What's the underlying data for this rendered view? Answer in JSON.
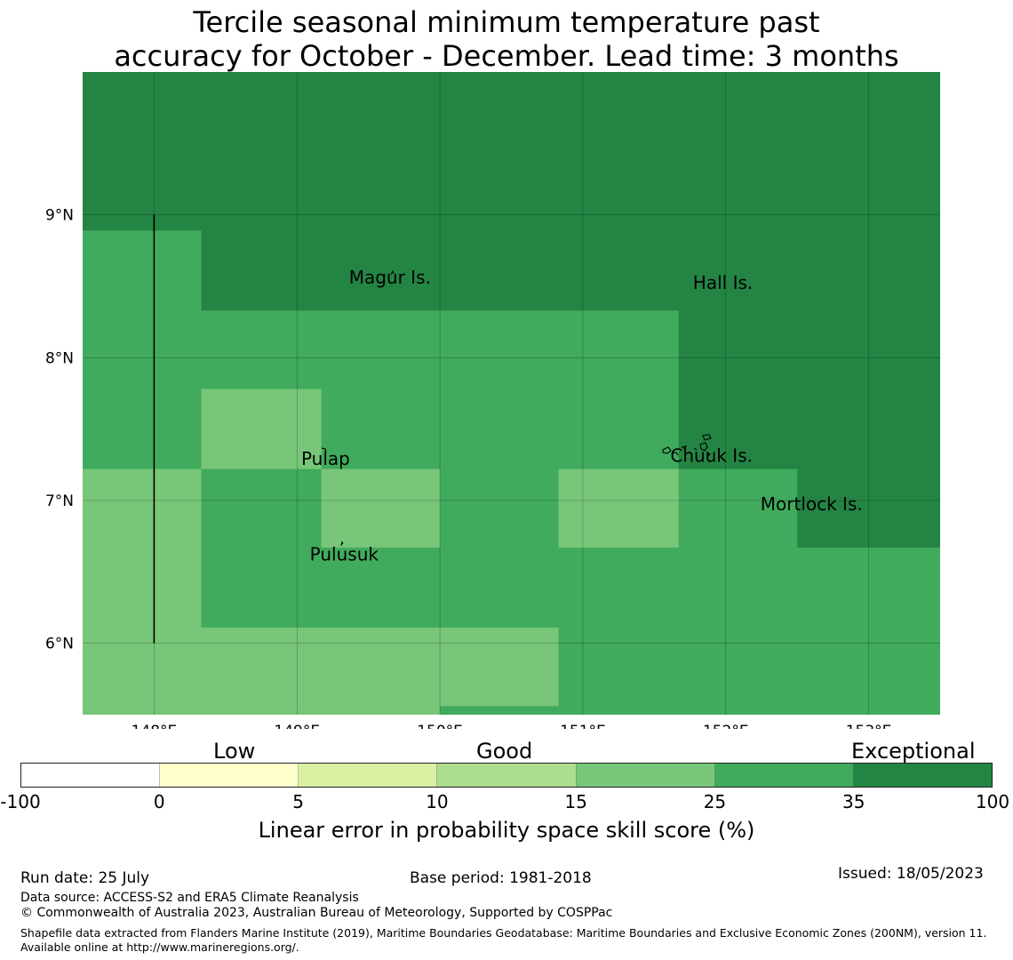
{
  "title_line1": "Tercile seasonal minimum temperature past",
  "title_line2": "accuracy for October - December. Lead time: 3 months",
  "map": {
    "lon_range": [
      147.5,
      153.5
    ],
    "lat_range": [
      5.5,
      10.0
    ],
    "lat_ticks": [
      {
        "value": 9,
        "label": "9°N"
      },
      {
        "value": 8,
        "label": "8°N"
      },
      {
        "value": 7,
        "label": "7°N"
      },
      {
        "value": 6,
        "label": "6°N"
      }
    ],
    "lon_ticks": [
      {
        "value": 148,
        "label": "148°E"
      },
      {
        "value": 149,
        "label": "149°E"
      },
      {
        "value": 150,
        "label": "150°E"
      },
      {
        "value": 151,
        "label": "151°E"
      },
      {
        "value": 152,
        "label": "152°E"
      },
      {
        "value": 153,
        "label": "153°E"
      }
    ],
    "places": [
      {
        "name": "Magur Is.",
        "lon": 149.65,
        "lat": 8.52
      },
      {
        "name": "Hall Is.",
        "lon": 151.98,
        "lat": 8.48
      },
      {
        "name": "Pulap",
        "lon": 149.2,
        "lat": 7.25
      },
      {
        "name": "Chuuk Is.",
        "lon": 151.9,
        "lat": 7.27
      },
      {
        "name": "Mortlock Is.",
        "lon": 152.6,
        "lat": 6.93
      },
      {
        "name": "Pulusuk",
        "lon": 149.33,
        "lat": 6.58
      }
    ],
    "boundary_line": {
      "lon": 148.0,
      "lat_from": 6.0,
      "lat_to": 9.0
    },
    "skill_regions": [
      {
        "category": "exceptional",
        "lon": [
          147.5,
          153.5
        ],
        "lat": [
          5.5,
          10.0
        ]
      },
      {
        "category": "high",
        "lon": [
          147.5,
          148.33
        ],
        "lat": [
          5.5,
          8.89
        ]
      },
      {
        "category": "high",
        "lon": [
          147.5,
          151.67
        ],
        "lat": [
          5.5,
          8.33
        ]
      },
      {
        "category": "high",
        "lon": [
          147.5,
          152.5
        ],
        "lat": [
          5.5,
          7.22
        ]
      },
      {
        "category": "high",
        "lon": [
          147.5,
          153.5
        ],
        "lat": [
          5.5,
          6.67
        ]
      },
      {
        "category": "good",
        "lon": [
          148.33,
          149.17
        ],
        "lat": [
          7.22,
          7.78
        ]
      },
      {
        "category": "good",
        "lon": [
          147.5,
          148.33
        ],
        "lat": [
          5.5,
          7.22
        ]
      },
      {
        "category": "good",
        "lon": [
          149.17,
          150.0
        ],
        "lat": [
          6.67,
          7.22
        ]
      },
      {
        "category": "good",
        "lon": [
          150.83,
          151.67
        ],
        "lat": [
          6.67,
          7.22
        ]
      },
      {
        "category": "good",
        "lon": [
          147.5,
          150.83
        ],
        "lat": [
          5.56,
          6.11
        ]
      },
      {
        "category": "good",
        "lon": [
          147.5,
          150.0
        ],
        "lat": [
          5.5,
          5.56
        ]
      }
    ]
  },
  "colorbar": {
    "categories": [
      "Low",
      "Good",
      "Exceptional"
    ],
    "ticks": [
      "-100",
      "0",
      "5",
      "10",
      "15",
      "25",
      "35",
      "100"
    ],
    "colors": [
      "#ffffff",
      "#ffffcc",
      "#d9f0a3",
      "#addd8e",
      "#78c679",
      "#41ab5d",
      "#238443"
    ],
    "label": "Linear error in probability space skill score (%)"
  },
  "map_colors": {
    "good": "#78c679",
    "high": "#41ab5d",
    "exceptional": "#238443"
  },
  "footer": {
    "run_date": "Run date: 25 July",
    "base_period": "Base period: 1981-2018",
    "issued": "Issued: 18/05/2023",
    "data_source": "Data source: ACCESS-S2 and ERA5 Climate Reanalysis",
    "copyright": "© Commonwealth of Australia 2023, Australian Bureau of Meteorology, Supported by COSPPac",
    "shapefile": "Shapefile data extracted from Flanders Marine Institute (2019), Maritime Boundaries Geodatabase: Maritime Boundaries and Exclusive Economic Zones (200NM), version 11. Available online at http://www.marineregions.org/."
  }
}
